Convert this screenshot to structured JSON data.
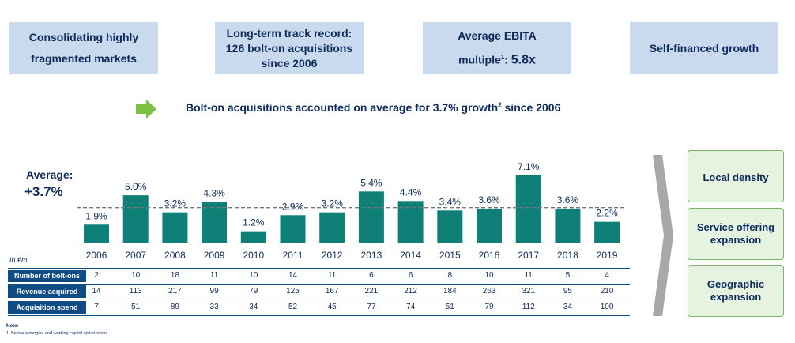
{
  "kpi_boxes": {
    "box1": {
      "line1": "Consolidating highly",
      "line2": "fragmented markets"
    },
    "box2": {
      "line1": "Long-term track record:",
      "line2": "126 bolt-on acquisitions",
      "line3": "since 2006"
    },
    "box3": {
      "line1": "Average EBITA",
      "line2_text": "multiple",
      "line2_sup": "1",
      "line2_colon": ": ",
      "line2_value": "5.8x"
    },
    "box4": {
      "line1": "Self-financed growth"
    }
  },
  "headline": {
    "text": "Bolt-on acquisitions accounted on average for 3.7% growth",
    "sup": "2",
    "suffix": " since 2006"
  },
  "average": {
    "label": "Average:",
    "value": "+3.7%"
  },
  "chart_data": {
    "type": "bar",
    "categories": [
      "2006",
      "2007",
      "2008",
      "2009",
      "2010",
      "2011",
      "2012",
      "2013",
      "2014",
      "2015",
      "2016",
      "2017",
      "2018",
      "2019"
    ],
    "values": [
      1.9,
      5.0,
      3.2,
      4.3,
      1.2,
      2.9,
      3.2,
      5.4,
      4.4,
      3.4,
      3.6,
      7.1,
      3.6,
      2.2
    ],
    "value_labels": [
      "1.9%",
      "5.0%",
      "3.2%",
      "4.3%",
      "1.2%",
      "2.9%",
      "3.2%",
      "5.4%",
      "4.4%",
      "3.4%",
      "3.6%",
      "7.1%",
      "3.6%",
      "2.2%"
    ],
    "average_line": 3.7,
    "ylim": [
      0,
      7.1
    ],
    "bar_color": "#0e8078",
    "average_line_color": "#777777"
  },
  "table": {
    "unit": "In €m",
    "rows": [
      {
        "label": "Number of bolt-ons",
        "values": [
          "2",
          "10",
          "18",
          "11",
          "10",
          "14",
          "11",
          "6",
          "6",
          "8",
          "10",
          "11",
          "5",
          "4"
        ]
      },
      {
        "label": "Revenue acquired",
        "values": [
          "14",
          "113",
          "217",
          "99",
          "79",
          "125",
          "167",
          "221",
          "212",
          "184",
          "263",
          "321",
          "95",
          "210"
        ]
      },
      {
        "label": "Acquisition spend",
        "values": [
          "7",
          "51",
          "89",
          "33",
          "34",
          "52",
          "45",
          "77",
          "74",
          "51",
          "79",
          "112",
          "34",
          "100"
        ]
      }
    ]
  },
  "side_boxes": [
    "Local density",
    "Service offering expansion",
    "Geographic expansion"
  ],
  "note": {
    "title": "Note:",
    "text": "1. Before synergies and working capital optimization"
  },
  "colors": {
    "navy": "#0d2a5c",
    "kpi_bg": "#c9d9ee",
    "table_header": "#0f4c86",
    "side_bg": "#e6f3e1",
    "side_border": "#7db36a",
    "arrow_green": "#7cc142"
  }
}
